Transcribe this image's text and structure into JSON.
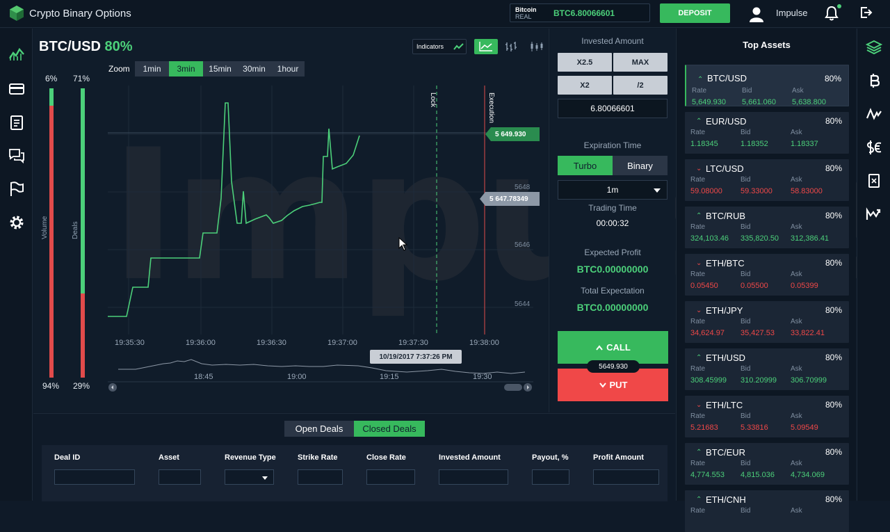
{
  "app": {
    "title": "Crypto Binary Options"
  },
  "header": {
    "account_currency": "Bitcoin",
    "account_type": "REAL",
    "balance": "BTC6.80066601",
    "deposit_label": "DEPOSIT",
    "user_name": "Impulse"
  },
  "left_nav": {
    "items": [
      "chart-icon",
      "card-icon",
      "clipboard-icon",
      "chat-icon",
      "flag-icon",
      "gear-icon"
    ]
  },
  "chart": {
    "pair": "BTC/USD",
    "payout": "80%",
    "indicators_label": "Indicators",
    "zoom_label": "Zoom",
    "zoom_options": [
      "1min",
      "3min",
      "15min",
      "30min",
      "1hour"
    ],
    "zoom_selected": "3min",
    "volume": {
      "label": "Volume",
      "top_pct": "6%",
      "bottom_pct": "94%",
      "value": 0.06
    },
    "deals": {
      "label": "Deals",
      "top_pct": "71%",
      "bottom_pct": "29%",
      "value": 0.71
    },
    "price_ticks": [
      "5648",
      "5646",
      "5644"
    ],
    "time_ticks": [
      "19:35:30",
      "19:36:00",
      "19:36:30",
      "19:37:00",
      "19:37:30",
      "19:38:00"
    ],
    "current_tag": "5 649.930",
    "cursor_tag": "5 647.78349",
    "lock_label": "Lock",
    "execution_label": "Execution",
    "watermark": "Impulse",
    "tooltip_date": "10/19/2017 7:37:26 PM",
    "navigator_ticks": [
      "18:45",
      "19:00",
      "19:15",
      "19:30"
    ],
    "accent_up": "#4cd07a",
    "accent_down": "#f04848"
  },
  "trade": {
    "invested_title": "Invested Amount",
    "buttons": [
      "X2.5",
      "MAX",
      "X2",
      "/2"
    ],
    "amount": "6.80066601",
    "expiration_title": "Expiration Time",
    "tabs": [
      "Turbo",
      "Binary"
    ],
    "tab_selected": "Turbo",
    "expiry_value": "1m",
    "trading_time_title": "Trading Time",
    "trading_time": "00:00:32",
    "expected_profit_title": "Expected Profit",
    "expected_profit": "BTC0.00000000",
    "total_expectation_title": "Total Expectation",
    "total_expectation": "BTC0.00000000",
    "call_label": "CALL",
    "put_label": "PUT",
    "price_tag": "5649.930"
  },
  "assets": {
    "title": "Top Assets",
    "labels": {
      "rate": "Rate",
      "bid": "Bid",
      "ask": "Ask"
    },
    "items": [
      {
        "name": "BTC/USD",
        "pct": "80%",
        "dir": "up",
        "rate": "5,649.930",
        "bid": "5,661.060",
        "ask": "5,638.800"
      },
      {
        "name": "EUR/USD",
        "pct": "80%",
        "dir": "up",
        "rate": "1.18345",
        "bid": "1.18352",
        "ask": "1.18337"
      },
      {
        "name": "LTC/USD",
        "pct": "80%",
        "dir": "down",
        "rate": "59.08000",
        "bid": "59.33000",
        "ask": "58.83000"
      },
      {
        "name": "BTC/RUB",
        "pct": "80%",
        "dir": "up",
        "rate": "324,103.46",
        "bid": "335,820.50",
        "ask": "312,386.41"
      },
      {
        "name": "ETH/BTC",
        "pct": "80%",
        "dir": "down",
        "rate": "0.05450",
        "bid": "0.05500",
        "ask": "0.05399"
      },
      {
        "name": "ETH/JPY",
        "pct": "80%",
        "dir": "down",
        "rate": "34,624.97",
        "bid": "35,427.53",
        "ask": "33,822.41"
      },
      {
        "name": "ETH/USD",
        "pct": "80%",
        "dir": "up",
        "rate": "308.45999",
        "bid": "310.20999",
        "ask": "306.70999"
      },
      {
        "name": "ETH/LTC",
        "pct": "80%",
        "dir": "down",
        "rate": "5.21683",
        "bid": "5.33816",
        "ask": "5.09549"
      },
      {
        "name": "BTC/EUR",
        "pct": "80%",
        "dir": "up",
        "rate": "4,774.553",
        "bid": "4,815.036",
        "ask": "4,734.069"
      },
      {
        "name": "ETH/CNH",
        "pct": "80%",
        "dir": "up",
        "rate": "",
        "bid": "",
        "ask": ""
      }
    ]
  },
  "right_nav": {
    "items": [
      "layers-icon",
      "bitcoin-icon",
      "pulse-icon",
      "currency-icon",
      "sim-icon",
      "trend-icon"
    ]
  },
  "deals": {
    "tabs": [
      "Open Deals",
      "Closed Deals"
    ],
    "tab_selected": "Closed Deals",
    "columns": [
      "Deal ID",
      "Asset",
      "Revenue Type",
      "Strike Rate",
      "Close Rate",
      "Invested Amount",
      "Payout, %",
      "Profit Amount"
    ]
  }
}
